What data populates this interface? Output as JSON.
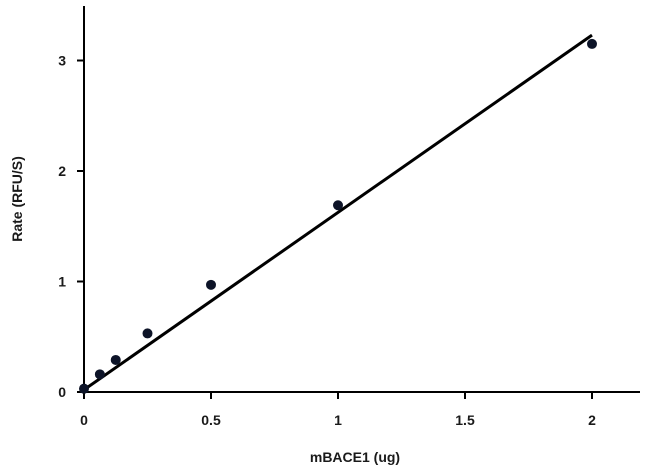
{
  "chart_data": {
    "type": "scatter",
    "title": "",
    "xlabel": "mBACE1 (ug)",
    "ylabel": "Rate (RFU/S)",
    "xlim": [
      0,
      2.2
    ],
    "ylim": [
      0,
      3.5
    ],
    "x_ticks": [
      0,
      0.5,
      1,
      1.5,
      2
    ],
    "x_tick_labels": [
      "0",
      "0.5",
      "1",
      "1.5",
      "2"
    ],
    "y_ticks": [
      0,
      1,
      2,
      3
    ],
    "y_tick_labels": [
      "0",
      "1",
      "2",
      "3"
    ],
    "grid": false,
    "legend": "none",
    "series": [
      {
        "points": [
          {
            "x": 0,
            "y": 0.03
          },
          {
            "x": 0.0625,
            "y": 0.16
          },
          {
            "x": 0.125,
            "y": 0.29
          },
          {
            "x": 0.25,
            "y": 0.53
          },
          {
            "x": 0.5,
            "y": 0.97
          },
          {
            "x": 1,
            "y": 1.69
          },
          {
            "x": 2,
            "y": 3.15
          }
        ]
      }
    ],
    "trendline": {
      "type": "linear",
      "x": [
        0,
        2
      ],
      "y": [
        0.02,
        3.23
      ]
    }
  }
}
